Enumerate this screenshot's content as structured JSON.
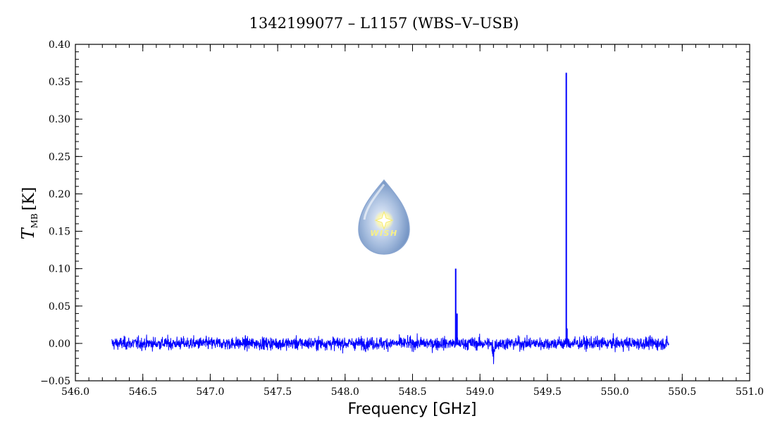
{
  "chart_data": {
    "type": "line",
    "title": "1342199077 – L1157 (WBS–V–USB)",
    "xlabel": "Frequency [GHz]",
    "ylabel_symbol": "T",
    "ylabel_subscript": "MB",
    "ylabel_unit": "[K]",
    "xlim": [
      546.0,
      551.0
    ],
    "ylim": [
      -0.05,
      0.4
    ],
    "x_ticks": [
      "546.0",
      "546.5",
      "547.0",
      "547.5",
      "548.0",
      "548.5",
      "549.0",
      "549.5",
      "550.0",
      "550.5",
      "551.0"
    ],
    "y_ticks": [
      "−0.05",
      "0.00",
      "0.05",
      "0.10",
      "0.15",
      "0.20",
      "0.25",
      "0.30",
      "0.35",
      "0.40"
    ],
    "grid": false,
    "series": [
      {
        "color": "#0000ff",
        "x_range": [
          546.27,
          550.4
        ],
        "baseline": 0.0,
        "noise_rms": 0.006,
        "peaks": [
          {
            "x": 548.82,
            "y": 0.1
          },
          {
            "x": 548.83,
            "y": 0.04
          },
          {
            "x": 549.64,
            "y": 0.362
          },
          {
            "x": 549.645,
            "y": 0.02
          }
        ],
        "dips": [
          {
            "x": 549.1,
            "y": -0.025
          }
        ]
      }
    ],
    "logo": {
      "text": "WISH",
      "icon": "water-drop-icon",
      "colors": [
        "#9fb8dc",
        "#4f79b8",
        "#f7f087"
      ]
    }
  }
}
